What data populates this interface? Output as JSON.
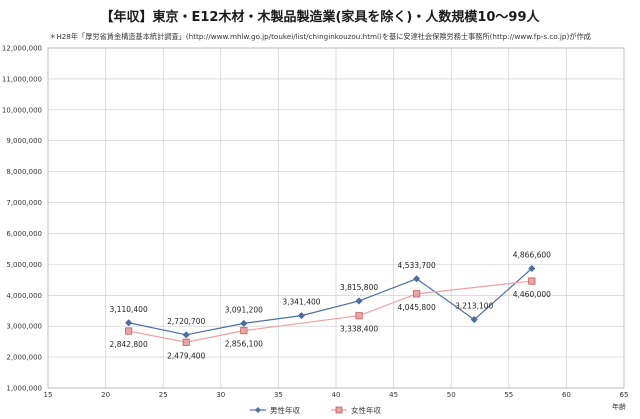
{
  "title": "【年収】東京・E12木材・木製品製造業(家具を除く)・人数規模10～99人",
  "subtitle": "＊H28年「厚労省賃金構造基本統計調査」(http://www.mhlw.go.jp/toukei/list/chinginkouzou.html)を基に安達社会保険労務士事務所(http://www.fp-s.co.jp)が作成",
  "chart_data": {
    "type": "line",
    "title": "【年収】東京・E12木材・木製品製造業(家具を除く)・人数規模10～99人",
    "xlabel": "年齢",
    "ylabel": "",
    "xlim": [
      15,
      65
    ],
    "ylim": [
      1000000,
      12000000
    ],
    "xticks": [
      15,
      20,
      25,
      30,
      35,
      40,
      45,
      50,
      55,
      60,
      65
    ],
    "xtick_labels": [
      "15",
      "20",
      "25",
      "30",
      "35",
      "40",
      "45",
      "50",
      "55",
      "60",
      "65"
    ],
    "yticks": [
      1000000,
      2000000,
      3000000,
      4000000,
      5000000,
      6000000,
      7000000,
      8000000,
      9000000,
      10000000,
      11000000,
      12000000
    ],
    "ytick_labels": [
      "1,000,000",
      "2,000,000",
      "3,000,000",
      "4,000,000",
      "5,000,000",
      "6,000,000",
      "7,000,000",
      "8,000,000",
      "9,000,000",
      "10,000,000",
      "11,000,000",
      "12,000,000"
    ],
    "grid": true,
    "legend_position": "bottom",
    "series": [
      {
        "name": "男性年収",
        "color": "#4a6fa5",
        "marker": "diamond",
        "line": true,
        "points": [
          {
            "x": 22,
            "y": 3110400,
            "label": "3,110,400"
          },
          {
            "x": 27,
            "y": 2720700,
            "label": "2,720,700"
          },
          {
            "x": 32,
            "y": 3091200,
            "label": "3,091,200"
          },
          {
            "x": 37,
            "y": 3341400,
            "label": "3,341,400"
          },
          {
            "x": 42,
            "y": 3815800,
            "label": "3,815,800"
          },
          {
            "x": 47,
            "y": 4533700,
            "label": "4,533,700"
          },
          {
            "x": 52,
            "y": 3213100,
            "label": "3,213,100"
          },
          {
            "x": 57,
            "y": 4866600,
            "label": "4,866,600"
          }
        ]
      },
      {
        "name": "女性年収",
        "color": "#d9534f",
        "marker": "square",
        "line": true,
        "points": [
          {
            "x": 22,
            "y": 2842800,
            "label": "2,842,800"
          },
          {
            "x": 27,
            "y": 2479400,
            "label": "2,479,400"
          },
          {
            "x": 32,
            "y": 2856100,
            "label": "2,856,100"
          },
          {
            "x": 42,
            "y": 3338400,
            "label": "3,338,400"
          },
          {
            "x": 47,
            "y": 4045800,
            "label": "4,045,800"
          },
          {
            "x": 57,
            "y": 4460000,
            "label": "4,460,000"
          }
        ]
      }
    ]
  },
  "colors": {
    "grid": "#c8c8c8",
    "plot_border": "#999999",
    "male": "#4a6fa5",
    "female_line": "#f0a0a0",
    "female_fill": "#e8a5a5",
    "female_edge": "#c0504d"
  }
}
